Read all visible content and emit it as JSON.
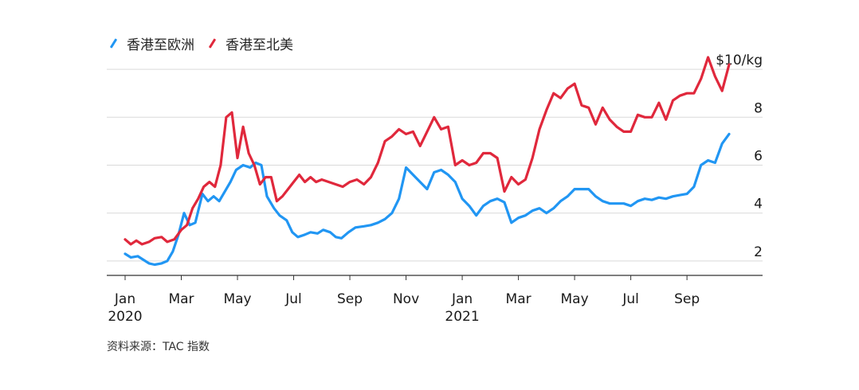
{
  "legend": [
    {
      "name": "香港至欧洲",
      "color": "#2196f3"
    },
    {
      "name": "香港至北美",
      "color": "#e0283c"
    }
  ],
  "source": "资料来源：TAC 指数",
  "chart_data": {
    "type": "line",
    "ylabel": "$10/kg",
    "ylim": [
      1.4,
      10.9
    ],
    "yticks": [
      {
        "value": 10,
        "label": "$10/kg"
      },
      {
        "value": 8,
        "label": "8"
      },
      {
        "value": 6,
        "label": "6"
      },
      {
        "value": 4,
        "label": "4"
      },
      {
        "value": 2,
        "label": "2"
      }
    ],
    "grid": true,
    "legend_position": "top-left",
    "xlim": [
      0,
      21.5
    ],
    "xticks": [
      {
        "value": 0,
        "label": "Jan",
        "sub": "2020"
      },
      {
        "value": 2,
        "label": "Mar",
        "sub": ""
      },
      {
        "value": 4,
        "label": "May",
        "sub": ""
      },
      {
        "value": 6,
        "label": "Jul",
        "sub": ""
      },
      {
        "value": 8,
        "label": "Sep",
        "sub": ""
      },
      {
        "value": 10,
        "label": "Nov",
        "sub": ""
      },
      {
        "value": 12,
        "label": "Jan",
        "sub": "2021"
      },
      {
        "value": 14,
        "label": "Mar",
        "sub": ""
      },
      {
        "value": 16,
        "label": "May",
        "sub": ""
      },
      {
        "value": 18,
        "label": "Jul",
        "sub": ""
      },
      {
        "value": 20,
        "label": "Sep",
        "sub": ""
      }
    ],
    "series": [
      {
        "name": "香港至欧洲",
        "color": "#2196f3",
        "points": [
          [
            0,
            2.3
          ],
          [
            0.2,
            2.15
          ],
          [
            0.45,
            2.2
          ],
          [
            0.65,
            2.05
          ],
          [
            0.85,
            1.9
          ],
          [
            1.05,
            1.85
          ],
          [
            1.3,
            1.9
          ],
          [
            1.5,
            2.0
          ],
          [
            1.7,
            2.4
          ],
          [
            1.9,
            3.1
          ],
          [
            2.1,
            4.0
          ],
          [
            2.3,
            3.5
          ],
          [
            2.5,
            3.6
          ],
          [
            2.75,
            4.8
          ],
          [
            2.95,
            4.5
          ],
          [
            3.15,
            4.7
          ],
          [
            3.35,
            4.5
          ],
          [
            3.55,
            4.9
          ],
          [
            3.75,
            5.3
          ],
          [
            3.95,
            5.8
          ],
          [
            4.2,
            6.0
          ],
          [
            4.45,
            5.9
          ],
          [
            4.65,
            6.1
          ],
          [
            4.85,
            6.0
          ],
          [
            5.05,
            4.7
          ],
          [
            5.3,
            4.2
          ],
          [
            5.5,
            3.9
          ],
          [
            5.75,
            3.7
          ],
          [
            5.95,
            3.2
          ],
          [
            6.15,
            3.0
          ],
          [
            6.4,
            3.1
          ],
          [
            6.6,
            3.2
          ],
          [
            6.85,
            3.15
          ],
          [
            7.05,
            3.3
          ],
          [
            7.3,
            3.2
          ],
          [
            7.5,
            3.0
          ],
          [
            7.7,
            2.95
          ],
          [
            7.95,
            3.2
          ],
          [
            8.2,
            3.4
          ],
          [
            8.5,
            3.45
          ],
          [
            8.75,
            3.5
          ],
          [
            9.0,
            3.6
          ],
          [
            9.25,
            3.75
          ],
          [
            9.5,
            4.0
          ],
          [
            9.75,
            4.6
          ],
          [
            10.0,
            5.9
          ],
          [
            10.25,
            5.6
          ],
          [
            10.5,
            5.3
          ],
          [
            10.75,
            5.0
          ],
          [
            11.0,
            5.7
          ],
          [
            11.25,
            5.8
          ],
          [
            11.5,
            5.6
          ],
          [
            11.75,
            5.3
          ],
          [
            12.0,
            4.6
          ],
          [
            12.25,
            4.3
          ],
          [
            12.5,
            3.9
          ],
          [
            12.75,
            4.3
          ],
          [
            13.0,
            4.5
          ],
          [
            13.25,
            4.6
          ],
          [
            13.5,
            4.45
          ],
          [
            13.75,
            3.6
          ],
          [
            14.0,
            3.8
          ],
          [
            14.25,
            3.9
          ],
          [
            14.5,
            4.1
          ],
          [
            14.75,
            4.2
          ],
          [
            15.0,
            4.0
          ],
          [
            15.25,
            4.2
          ],
          [
            15.5,
            4.5
          ],
          [
            15.75,
            4.7
          ],
          [
            16.0,
            5.0
          ],
          [
            16.25,
            5.0
          ],
          [
            16.5,
            5.0
          ],
          [
            16.75,
            4.7
          ],
          [
            17.0,
            4.5
          ],
          [
            17.25,
            4.4
          ],
          [
            17.5,
            4.4
          ],
          [
            17.75,
            4.4
          ],
          [
            18.0,
            4.3
          ],
          [
            18.25,
            4.5
          ],
          [
            18.5,
            4.6
          ],
          [
            18.75,
            4.55
          ],
          [
            19.0,
            4.65
          ],
          [
            19.25,
            4.6
          ],
          [
            19.5,
            4.7
          ],
          [
            19.75,
            4.75
          ],
          [
            20.0,
            4.8
          ],
          [
            20.25,
            5.1
          ],
          [
            20.5,
            6.0
          ],
          [
            20.75,
            6.2
          ],
          [
            21.0,
            6.1
          ],
          [
            21.25,
            6.9
          ],
          [
            21.5,
            7.3
          ]
        ]
      },
      {
        "name": "香港至北美",
        "color": "#e0283c",
        "points": [
          [
            0,
            2.9
          ],
          [
            0.2,
            2.7
          ],
          [
            0.4,
            2.85
          ],
          [
            0.6,
            2.7
          ],
          [
            0.85,
            2.8
          ],
          [
            1.05,
            2.95
          ],
          [
            1.3,
            3.0
          ],
          [
            1.5,
            2.8
          ],
          [
            1.75,
            2.9
          ],
          [
            2.0,
            3.3
          ],
          [
            2.2,
            3.5
          ],
          [
            2.4,
            4.2
          ],
          [
            2.6,
            4.6
          ],
          [
            2.8,
            5.1
          ],
          [
            3.0,
            5.3
          ],
          [
            3.2,
            5.1
          ],
          [
            3.4,
            6.0
          ],
          [
            3.6,
            8.0
          ],
          [
            3.8,
            8.2
          ],
          [
            4.0,
            6.3
          ],
          [
            4.2,
            7.6
          ],
          [
            4.4,
            6.5
          ],
          [
            4.6,
            6.0
          ],
          [
            4.8,
            5.2
          ],
          [
            5.0,
            5.5
          ],
          [
            5.2,
            5.5
          ],
          [
            5.4,
            4.5
          ],
          [
            5.6,
            4.7
          ],
          [
            5.8,
            5.0
          ],
          [
            6.0,
            5.3
          ],
          [
            6.2,
            5.6
          ],
          [
            6.4,
            5.3
          ],
          [
            6.6,
            5.5
          ],
          [
            6.8,
            5.3
          ],
          [
            7.0,
            5.4
          ],
          [
            7.25,
            5.3
          ],
          [
            7.5,
            5.2
          ],
          [
            7.75,
            5.1
          ],
          [
            8.0,
            5.3
          ],
          [
            8.25,
            5.4
          ],
          [
            8.5,
            5.2
          ],
          [
            8.75,
            5.5
          ],
          [
            9.0,
            6.1
          ],
          [
            9.25,
            7.0
          ],
          [
            9.5,
            7.2
          ],
          [
            9.75,
            7.5
          ],
          [
            10.0,
            7.3
          ],
          [
            10.25,
            7.4
          ],
          [
            10.5,
            6.8
          ],
          [
            10.75,
            7.4
          ],
          [
            11.0,
            8.0
          ],
          [
            11.25,
            7.5
          ],
          [
            11.5,
            7.6
          ],
          [
            11.75,
            6.0
          ],
          [
            12.0,
            6.2
          ],
          [
            12.25,
            6.0
          ],
          [
            12.5,
            6.1
          ],
          [
            12.75,
            6.5
          ],
          [
            13.0,
            6.5
          ],
          [
            13.25,
            6.3
          ],
          [
            13.5,
            4.9
          ],
          [
            13.75,
            5.5
          ],
          [
            14.0,
            5.2
          ],
          [
            14.25,
            5.4
          ],
          [
            14.5,
            6.3
          ],
          [
            14.75,
            7.5
          ],
          [
            15.0,
            8.3
          ],
          [
            15.25,
            9.0
          ],
          [
            15.5,
            8.8
          ],
          [
            15.75,
            9.2
          ],
          [
            16.0,
            9.4
          ],
          [
            16.25,
            8.5
          ],
          [
            16.5,
            8.4
          ],
          [
            16.75,
            7.7
          ],
          [
            17.0,
            8.4
          ],
          [
            17.25,
            7.9
          ],
          [
            17.5,
            7.6
          ],
          [
            17.75,
            7.4
          ],
          [
            18.0,
            7.4
          ],
          [
            18.25,
            8.1
          ],
          [
            18.5,
            8.0
          ],
          [
            18.75,
            8.0
          ],
          [
            19.0,
            8.6
          ],
          [
            19.25,
            7.9
          ],
          [
            19.5,
            8.7
          ],
          [
            19.75,
            8.9
          ],
          [
            20.0,
            9.0
          ],
          [
            20.25,
            9.0
          ],
          [
            20.5,
            9.6
          ],
          [
            20.75,
            10.5
          ],
          [
            21.0,
            9.7
          ],
          [
            21.25,
            9.1
          ],
          [
            21.5,
            10.2
          ]
        ]
      }
    ]
  }
}
